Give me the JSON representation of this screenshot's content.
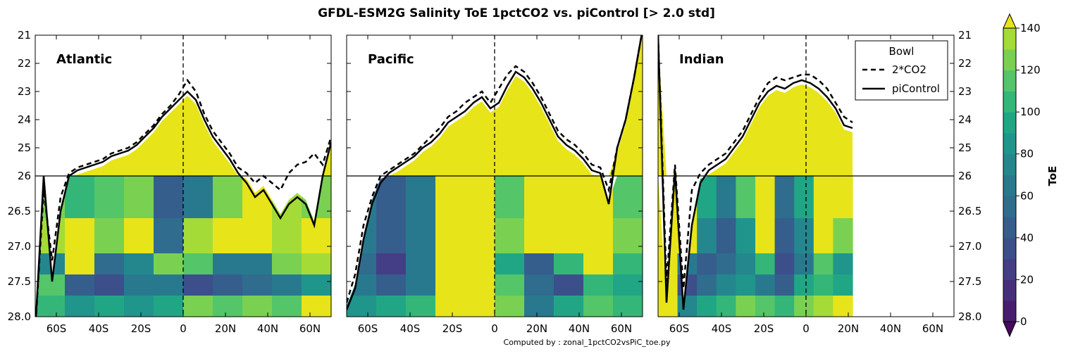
{
  "chart_data": {
    "type": "heatmap",
    "title": "GFDL-ESM2G Salinity ToE 1pctCO2 vs. piControl [> 2.0 std]",
    "footer": "Computed by : zonal_1pctCO2vsPiC_toe.py",
    "colorbar": {
      "label": "ToE",
      "range": [
        0,
        140
      ],
      "ticks": [
        "0",
        "20",
        "40",
        "60",
        "80",
        "100",
        "120",
        "140"
      ],
      "extend": "both",
      "levels": [
        0,
        10,
        20,
        30,
        40,
        50,
        60,
        70,
        80,
        90,
        100,
        110,
        120,
        130,
        140
      ],
      "colors": [
        "#46085c",
        "#481c6e",
        "#472e7c",
        "#433e85",
        "#3c4f8a",
        "#355e8d",
        "#2f6c8e",
        "#29798e",
        "#24878e",
        "#1f958b",
        "#21a685",
        "#34b679",
        "#54c568",
        "#7ad151",
        "#a5db36",
        "#d2e21b",
        "#e7e419"
      ]
    },
    "x_axis": {
      "range": [
        -70,
        70
      ],
      "tick_values": [
        -60,
        -40,
        -20,
        0,
        20,
        40,
        60
      ],
      "tick_labels": [
        "60S",
        "40S",
        "20S",
        "0",
        "20N",
        "40N",
        "60N"
      ]
    },
    "y_axis": {
      "upper_tick_values": [
        21,
        22,
        23,
        24,
        25,
        26
      ],
      "upper_tick_labels": [
        "21",
        "22",
        "23",
        "24",
        "25",
        "26"
      ],
      "lower_tick_values": [
        26,
        26.5,
        27.0,
        27.5,
        28.0
      ],
      "lower_tick_labels": [
        "26",
        "26.5",
        "27.0",
        "27.5",
        "28.0"
      ],
      "split_density": 26,
      "inverted": true
    },
    "legend": {
      "title": "Bowl",
      "entries": [
        "2*CO2",
        "piControl"
      ],
      "panel": "Indian",
      "placement": "top-right"
    },
    "lat_grid": [
      -70,
      -66,
      -62,
      -58,
      -54,
      -50,
      -46,
      -42,
      -38,
      -34,
      -30,
      -26,
      -22,
      -18,
      -14,
      -10,
      -6,
      -2,
      2,
      6,
      10,
      14,
      18,
      22,
      26,
      30,
      34,
      38,
      42,
      46,
      50,
      54,
      58,
      62,
      66,
      70
    ],
    "panels": [
      {
        "name": "Atlantic",
        "lat_range": [
          -70,
          70
        ],
        "bowl_picontrol": [
          28.2,
          26.0,
          27.5,
          26.5,
          26.0,
          25.8,
          25.7,
          25.6,
          25.5,
          25.3,
          25.2,
          25.1,
          24.9,
          24.6,
          24.3,
          23.9,
          23.6,
          23.3,
          23.0,
          23.3,
          24.0,
          24.6,
          25.0,
          25.4,
          25.9,
          26.1,
          26.3,
          26.2,
          26.4,
          26.6,
          26.4,
          26.3,
          26.4,
          26.7,
          26.0,
          24.8
        ],
        "bowl_2co2": [
          28.2,
          26.2,
          27.2,
          26.3,
          25.9,
          25.7,
          25.6,
          25.5,
          25.4,
          25.2,
          25.1,
          25.0,
          24.8,
          24.5,
          24.2,
          23.8,
          23.5,
          23.1,
          22.6,
          23.0,
          23.8,
          24.4,
          24.8,
          25.2,
          25.7,
          25.9,
          26.1,
          26.0,
          26.1,
          26.2,
          25.9,
          25.6,
          25.5,
          25.2,
          25.6,
          24.6
        ],
        "toe_bands": [
          [
            26.0,
            26.6,
            120,
            100,
            110,
            120,
            40,
            60,
            120,
            140,
            135,
            120
          ],
          [
            26.6,
            27.1,
            135,
            140,
            120,
            140,
            55,
            130,
            140,
            140,
            130,
            140
          ],
          [
            27.1,
            27.4,
            70,
            140,
            50,
            70,
            120,
            110,
            60,
            60,
            120,
            130
          ],
          [
            27.4,
            27.7,
            110,
            40,
            30,
            60,
            60,
            35,
            40,
            50,
            60,
            80
          ],
          [
            27.7,
            28.0,
            100,
            80,
            90,
            80,
            90,
            120,
            110,
            120,
            110,
            140
          ]
        ]
      },
      {
        "name": "Pacific",
        "lat_range": [
          -70,
          70
        ],
        "bowl_picontrol": [
          27.9,
          27.6,
          26.9,
          26.4,
          26.1,
          25.9,
          25.7,
          25.5,
          25.3,
          25.0,
          24.8,
          24.5,
          24.1,
          23.9,
          23.7,
          23.4,
          23.2,
          23.6,
          23.4,
          22.8,
          22.3,
          22.5,
          22.9,
          23.4,
          24.0,
          24.6,
          24.9,
          25.1,
          25.4,
          25.8,
          25.9,
          26.4,
          25.0,
          24.0,
          22.5,
          20.8
        ],
        "bowl_2co2": [
          27.8,
          27.4,
          26.7,
          26.3,
          26.0,
          25.8,
          25.6,
          25.4,
          25.2,
          24.9,
          24.6,
          24.3,
          23.9,
          23.7,
          23.4,
          23.2,
          23.0,
          23.4,
          22.9,
          22.4,
          22.1,
          22.3,
          22.7,
          23.2,
          23.8,
          24.4,
          24.7,
          24.9,
          25.2,
          25.6,
          25.7,
          26.2,
          25.0,
          24.0,
          22.5,
          20.8
        ],
        "toe_bands": [
          [
            26.0,
            26.6,
            60,
            40,
            60,
            140,
            140,
            110,
            140,
            140,
            140,
            110
          ],
          [
            26.6,
            27.1,
            60,
            40,
            60,
            140,
            140,
            120,
            140,
            140,
            140,
            120
          ],
          [
            27.1,
            27.4,
            50,
            20,
            60,
            140,
            140,
            90,
            40,
            100,
            140,
            100
          ],
          [
            27.4,
            27.7,
            60,
            40,
            60,
            140,
            140,
            110,
            50,
            30,
            100,
            90
          ],
          [
            27.7,
            28.0,
            80,
            90,
            100,
            140,
            140,
            120,
            60,
            90,
            110,
            100
          ]
        ]
      },
      {
        "name": "Indian",
        "lat_range": [
          -70,
          26
        ],
        "bowl_picontrol": [
          21.0,
          27.8,
          25.8,
          27.9,
          26.7,
          26.1,
          25.8,
          25.6,
          25.4,
          25.0,
          24.6,
          24.0,
          23.4,
          23.0,
          22.8,
          22.9,
          22.7,
          22.6,
          22.7,
          22.9,
          23.2,
          23.6,
          24.2,
          24.3
        ],
        "bowl_2co2": [
          21.0,
          27.5,
          25.6,
          27.6,
          26.2,
          25.9,
          25.6,
          25.4,
          25.2,
          24.8,
          24.4,
          23.8,
          23.2,
          22.7,
          22.5,
          22.6,
          22.5,
          22.4,
          22.4,
          22.6,
          22.9,
          23.4,
          23.9,
          24.1
        ],
        "toe_bands": [
          [
            26.0,
            26.6,
            140,
            140,
            90,
            60,
            110,
            140,
            50,
            90,
            140,
            140
          ],
          [
            26.6,
            27.1,
            140,
            140,
            70,
            40,
            80,
            140,
            40,
            70,
            140,
            120
          ],
          [
            27.1,
            27.4,
            140,
            60,
            40,
            50,
            70,
            100,
            30,
            60,
            110,
            80
          ],
          [
            27.4,
            27.7,
            140,
            30,
            50,
            70,
            80,
            60,
            40,
            90,
            100,
            90
          ],
          [
            27.7,
            28.0,
            140,
            70,
            90,
            100,
            120,
            110,
            100,
            120,
            130,
            140
          ]
        ]
      }
    ]
  }
}
